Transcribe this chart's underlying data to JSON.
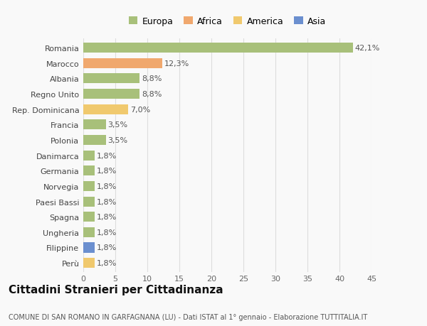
{
  "categories": [
    "Romania",
    "Marocco",
    "Albania",
    "Regno Unito",
    "Rep. Dominicana",
    "Francia",
    "Polonia",
    "Danimarca",
    "Germania",
    "Norvegia",
    "Paesi Bassi",
    "Spagna",
    "Ungheria",
    "Filippine",
    "Perù"
  ],
  "values": [
    42.1,
    12.3,
    8.8,
    8.8,
    7.0,
    3.5,
    3.5,
    1.8,
    1.8,
    1.8,
    1.8,
    1.8,
    1.8,
    1.8,
    1.8
  ],
  "labels": [
    "42,1%",
    "12,3%",
    "8,8%",
    "8,8%",
    "7,0%",
    "3,5%",
    "3,5%",
    "1,8%",
    "1,8%",
    "1,8%",
    "1,8%",
    "1,8%",
    "1,8%",
    "1,8%",
    "1,8%"
  ],
  "colors": [
    "#a8c07a",
    "#f0a86e",
    "#a8c07a",
    "#a8c07a",
    "#f0c96e",
    "#a8c07a",
    "#a8c07a",
    "#a8c07a",
    "#a8c07a",
    "#a8c07a",
    "#a8c07a",
    "#a8c07a",
    "#a8c07a",
    "#6b8fcf",
    "#f0c96e"
  ],
  "legend_labels": [
    "Europa",
    "Africa",
    "America",
    "Asia"
  ],
  "legend_colors": [
    "#a8c07a",
    "#f0a86e",
    "#f0c96e",
    "#6b8fcf"
  ],
  "title": "Cittadini Stranieri per Cittadinanza",
  "subtitle": "COMUNE DI SAN ROMANO IN GARFAGNANA (LU) - Dati ISTAT al 1° gennaio - Elaborazione TUTTITALIA.IT",
  "xlim": [
    0,
    45
  ],
  "xticks": [
    0,
    5,
    10,
    15,
    20,
    25,
    30,
    35,
    40,
    45
  ],
  "background_color": "#f9f9f9",
  "grid_color": "#dddddd",
  "bar_height": 0.65,
  "label_fontsize": 8,
  "tick_fontsize": 8,
  "title_fontsize": 11,
  "subtitle_fontsize": 7
}
